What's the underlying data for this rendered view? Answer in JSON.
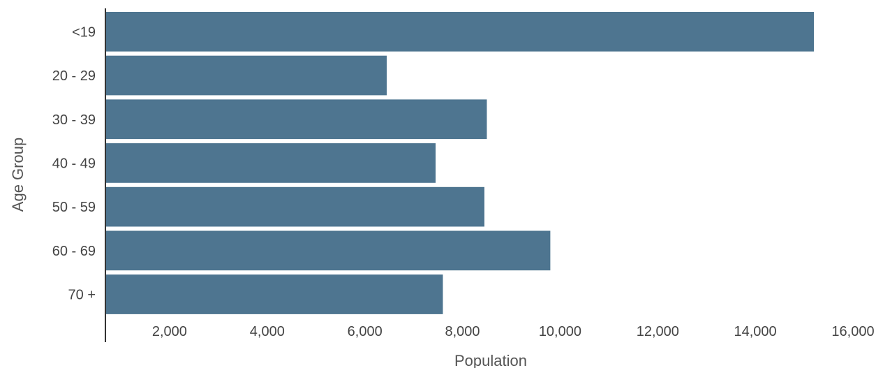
{
  "chart_data": {
    "type": "bar",
    "orientation": "horizontal",
    "title": "",
    "xlabel": "Population",
    "ylabel": "Age Group",
    "categories": [
      "<19",
      "20 - 29",
      "30 - 39",
      "40 - 49",
      "50 - 59",
      "60 - 69",
      "70 +"
    ],
    "values": [
      15200,
      6450,
      8500,
      7450,
      8450,
      9800,
      7600
    ],
    "xlim": [
      700,
      16000
    ],
    "xticks": [
      2000,
      4000,
      6000,
      8000,
      10000,
      12000,
      14000,
      16000
    ],
    "xtick_labels": [
      "2,000",
      "4,000",
      "6,000",
      "8,000",
      "10,000",
      "12,000",
      "14,000",
      "16,000"
    ],
    "grid": false,
    "bar_color": "#4e7590"
  }
}
